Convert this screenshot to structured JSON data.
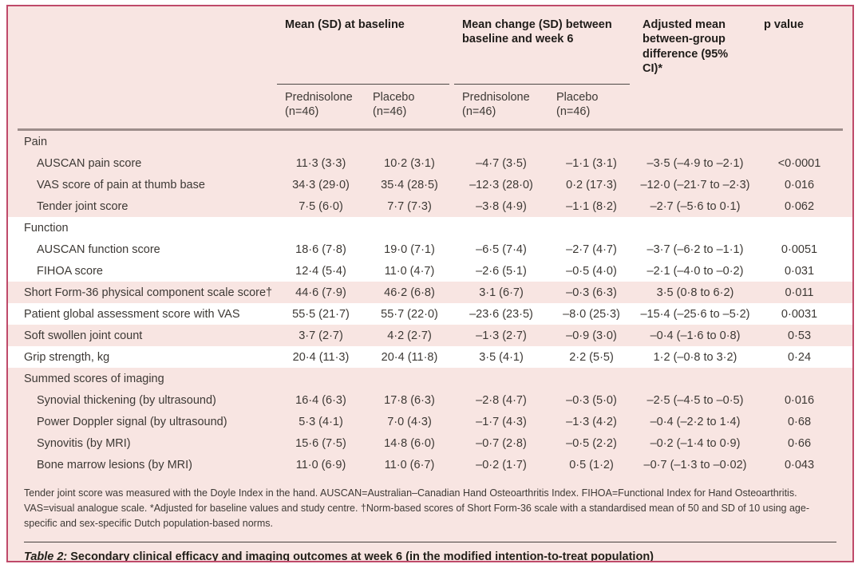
{
  "table": {
    "header": {
      "group_baseline": "Mean (SD) at baseline",
      "group_change": "Mean change (SD) between baseline and week 6",
      "adjusted": "Adjusted mean between-group difference (95% CI)*",
      "p_value": "p value",
      "subcolumns": [
        "Prednisolone (n=46)",
        "Placebo (n=46)",
        "Prednisolone (n=46)",
        "Placebo (n=46)"
      ]
    },
    "rows": [
      {
        "label": "Pain",
        "indent": 0,
        "band": "pink",
        "values": [
          "",
          "",
          "",
          "",
          "",
          ""
        ]
      },
      {
        "label": "AUSCAN pain score",
        "indent": 1,
        "band": "pink",
        "values": [
          "11·3 (3·3)",
          "10·2 (3·1)",
          "–4·7 (3·5)",
          "–1·1 (3·1)",
          "–3·5 (–4·9 to –2·1)",
          "<0·0001"
        ]
      },
      {
        "label": "VAS score of pain at thumb base",
        "indent": 1,
        "band": "pink",
        "values": [
          "34·3 (29·0)",
          "35·4 (28·5)",
          "–12·3 (28·0)",
          "0·2 (17·3)",
          "–12·0 (–21·7 to –2·3)",
          "0·016"
        ]
      },
      {
        "label": "Tender joint score",
        "indent": 1,
        "band": "pink",
        "values": [
          "7·5 (6·0)",
          "7·7 (7·3)",
          "–3·8 (4·9)",
          "–1·1 (8·2)",
          "–2·7 (–5·6 to 0·1)",
          "0·062"
        ]
      },
      {
        "label": "Function",
        "indent": 0,
        "band": "white",
        "values": [
          "",
          "",
          "",
          "",
          "",
          ""
        ]
      },
      {
        "label": "AUSCAN function score",
        "indent": 1,
        "band": "white",
        "values": [
          "18·6 (7·8)",
          "19·0 (7·1)",
          "–6·5 (7·4)",
          "–2·7 (4·7)",
          "–3·7 (–6·2 to –1·1)",
          "0·0051"
        ]
      },
      {
        "label": "FIHOA score",
        "indent": 1,
        "band": "white",
        "values": [
          "12·4 (5·4)",
          "11·0 (4·7)",
          "–2·6 (5·1)",
          "–0·5 (4·0)",
          "–2·1 (–4·0 to –0·2)",
          "0·031"
        ]
      },
      {
        "label": "Short Form-36 physical component scale score†",
        "indent": 0,
        "band": "pink",
        "values": [
          "44·6 (7·9)",
          "46·2 (6·8)",
          "3·1 (6·7)",
          "–0·3 (6·3)",
          "3·5 (0·8 to 6·2)",
          "0·011"
        ]
      },
      {
        "label": "Patient global assessment score with VAS",
        "indent": 0,
        "band": "white",
        "values": [
          "55·5 (21·7)",
          "55·7 (22·0)",
          "–23·6 (23·5)",
          "–8·0 (25·3)",
          "–15·4 (–25·6 to –5·2)",
          "0·0031"
        ]
      },
      {
        "label": "Soft swollen joint count",
        "indent": 0,
        "band": "pink",
        "values": [
          "3·7 (2·7)",
          "4·2 (2·7)",
          "–1·3 (2·7)",
          "–0·9 (3·0)",
          "–0·4 (–1·6 to 0·8)",
          "0·53"
        ]
      },
      {
        "label": "Grip strength, kg",
        "indent": 0,
        "band": "white",
        "values": [
          "20·4 (11·3)",
          "20·4 (11·8)",
          "3·5 (4·1)",
          "2·2 (5·5)",
          "1·2 (–0·8 to 3·2)",
          "0·24"
        ]
      },
      {
        "label": "Summed scores of imaging",
        "indent": 0,
        "band": "pink",
        "values": [
          "",
          "",
          "",
          "",
          "",
          ""
        ]
      },
      {
        "label": "Synovial thickening (by ultrasound)",
        "indent": 1,
        "band": "pink",
        "values": [
          "16·4 (6·3)",
          "17·8 (6·3)",
          "–2·8 (4·7)",
          "–0·3 (5·0)",
          "–2·5 (–4·5 to –0·5)",
          "0·016"
        ]
      },
      {
        "label": "Power Doppler signal (by ultrasound)",
        "indent": 1,
        "band": "pink",
        "values": [
          "5·3 (4·1)",
          "7·0 (4·3)",
          "–1·7 (4·3)",
          "–1·3 (4·2)",
          "–0·4 (–2·2 to 1·4)",
          "0·68"
        ]
      },
      {
        "label": "Synovitis (by MRI)",
        "indent": 1,
        "band": "pink",
        "values": [
          "15·6 (7·5)",
          "14·8 (6·0)",
          "–0·7 (2·8)",
          "–0·5 (2·2)",
          "–0·2 (–1·4 to 0·9)",
          "0·66"
        ]
      },
      {
        "label": "Bone marrow lesions (by MRI)",
        "indent": 1,
        "band": "pink",
        "values": [
          "11·0 (6·9)",
          "11·0 (6·7)",
          "–0·2 (1·7)",
          "0·5 (1·2)",
          "–0·7 (–1·3 to –0·02)",
          "0·043"
        ]
      }
    ],
    "footnote": "Tender joint score was measured with the Doyle Index in the hand. AUSCAN=Australian–Canadian Hand Osteoarthritis Index. FIHOA=Functional Index for Hand Osteoarthritis. VAS=visual analogue scale. *Adjusted for baseline values and study centre. †Norm-based scores of Short Form-36 scale with a standardised mean of 50 and SD of 10 using age-specific and sex-specific Dutch population-based norms.",
    "caption_label": "Table 2:",
    "caption_text": "Secondary clinical efficacy and imaging outcomes at week 6 (in the modified intention-to-treat population)"
  },
  "colors": {
    "border": "#bf4a6a",
    "background_pink": "#f8e5e2",
    "band_white": "#ffffff",
    "rule_heavy": "#9d8d8b",
    "rule_thin": "#45413e",
    "text": "#3d3935"
  }
}
